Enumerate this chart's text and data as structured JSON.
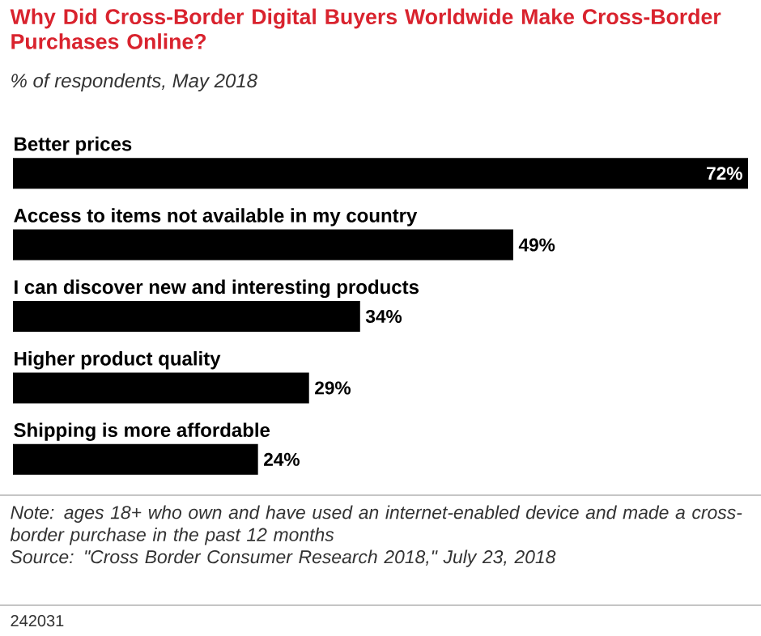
{
  "chart_data": {
    "type": "bar",
    "orientation": "horizontal",
    "title": "Why Did Cross-Border Digital Buyers Worldwide Make Cross-Border Purchases Online?",
    "subtitle": "% of respondents, May 2018",
    "categories": [
      "Better prices",
      "Access to items not available in my country",
      "I can discover new and interesting products",
      "Higher product quality",
      "Shipping is more affordable"
    ],
    "values": [
      72,
      49,
      34,
      29,
      24
    ],
    "value_labels": [
      "72%",
      "49%",
      "34%",
      "29%",
      "24%"
    ],
    "color": "#000000",
    "annotations": [
      "Note: ages 18+ who own and have used an internet-enabled device and made a cross-border purchase in the past 12 months",
      "Source: \"Cross Border Consumer Research 2018,\" July 23, 2018",
      "242031"
    ]
  }
}
